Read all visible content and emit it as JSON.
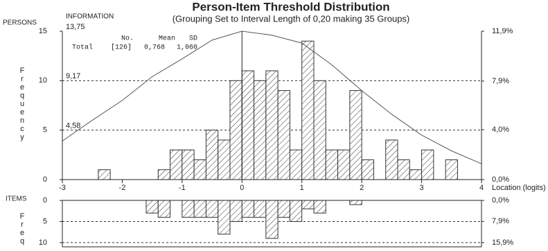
{
  "chart_data": [
    {
      "type": "histogram",
      "title": "Person-Item Threshold Distribution",
      "subtitle": "(Grouping Set to Interval Length of 0,20 making 35 Groups)",
      "y_label": "PERSONS",
      "y_axis_title": "Frequency",
      "y3_label": "INFORMATION",
      "x_label": "Location (logits)",
      "bins": [
        -3.0,
        -2.8,
        -2.6,
        -2.4,
        -2.2,
        -2.0,
        -1.8,
        -1.6,
        -1.4,
        -1.2,
        -1.0,
        -0.8,
        -0.6,
        -0.4,
        -0.2,
        0,
        0.2,
        0.4,
        0.6,
        0.8,
        1.0,
        1.2,
        1.4,
        1.6,
        1.8,
        2.0,
        2.2,
        2.4,
        2.6,
        2.8,
        3.0,
        3.2,
        3.4,
        3.6,
        3.8,
        4.0
      ],
      "series": [
        {
          "color": "#333333",
          "values": [
            0,
            0,
            0,
            1,
            0,
            0,
            0,
            0,
            1,
            3,
            3,
            2,
            5,
            4,
            10,
            11,
            10,
            11,
            9,
            3,
            14,
            10,
            3,
            3,
            9,
            2,
            0,
            4,
            2,
            1,
            3,
            0,
            2,
            0,
            0
          ]
        }
      ],
      "curve": {
        "color": "#555555",
        "x": [
          -3,
          -2.5,
          -2,
          -1.5,
          -1,
          -0.5,
          0,
          0.5,
          1,
          1.5,
          2,
          2.5,
          3,
          3.5,
          4
        ],
        "values": [
          3.9,
          6.0,
          8.0,
          10.4,
          12.2,
          14.1,
          15,
          14.6,
          13.8,
          11.6,
          9.0,
          6.6,
          4.5,
          2.9,
          1.6
        ]
      },
      "xlim": [
        -3,
        4
      ],
      "xticks": [
        -3,
        -2,
        -1,
        0,
        1,
        2,
        3,
        4
      ],
      "ylim": [
        0,
        15
      ],
      "yticks": [
        0,
        5,
        10,
        15
      ],
      "y3lim": [
        0,
        13.75
      ],
      "y3ticks": [
        {
          "value": 4.58,
          "label": "4,58"
        },
        {
          "value": 9.17,
          "label": "9,17"
        },
        {
          "value": 13.75,
          "label": "13,75"
        }
      ],
      "y2lim": [
        0,
        11.9
      ],
      "y2ticks": [
        {
          "value": 0,
          "label": "0,0%"
        },
        {
          "value": 4.0,
          "label": "4,0%"
        },
        {
          "value": 7.9,
          "label": "7,9%"
        },
        {
          "value": 11.9,
          "label": "11,9%"
        }
      ],
      "grid": true,
      "stats": {
        "headers": [
          "No.",
          "Mean",
          "SD"
        ],
        "rows": [
          [
            "Total",
            "[126]",
            "0,768",
            "1,060"
          ]
        ]
      }
    },
    {
      "type": "histogram",
      "inverted": true,
      "y_label": "ITEMS",
      "y_axis_title": "Freq",
      "bins": [
        -3.0,
        -2.8,
        -2.6,
        -2.4,
        -2.2,
        -2.0,
        -1.8,
        -1.6,
        -1.4,
        -1.2,
        -1.0,
        -0.8,
        -0.6,
        -0.4,
        -0.2,
        0,
        0.2,
        0.4,
        0.6,
        0.8,
        1.0,
        1.2,
        1.4,
        1.6,
        1.8,
        2.0,
        2.2,
        2.4,
        2.6,
        2.8,
        3.0,
        3.2,
        3.4,
        3.6,
        3.8,
        4.0
      ],
      "series": [
        {
          "color": "#333333",
          "values": [
            0,
            0,
            0,
            0,
            0,
            0,
            0,
            3,
            4,
            0,
            4,
            4,
            4,
            8,
            5,
            4,
            4,
            9,
            4,
            5,
            2,
            3,
            0,
            0,
            1,
            0,
            0,
            0,
            0,
            0,
            0,
            0,
            0,
            0,
            0
          ]
        }
      ],
      "xlim": [
        -3,
        4
      ],
      "ylim": [
        0,
        11
      ],
      "yticks": [
        0,
        5,
        10
      ],
      "y2lim": [
        0,
        17.49
      ],
      "y2ticks": [
        {
          "value": 0,
          "label": "0,0%"
        },
        {
          "value": 7.9,
          "label": "7,9%"
        },
        {
          "value": 15.9,
          "label": "15,9%"
        }
      ],
      "grid": true
    }
  ]
}
